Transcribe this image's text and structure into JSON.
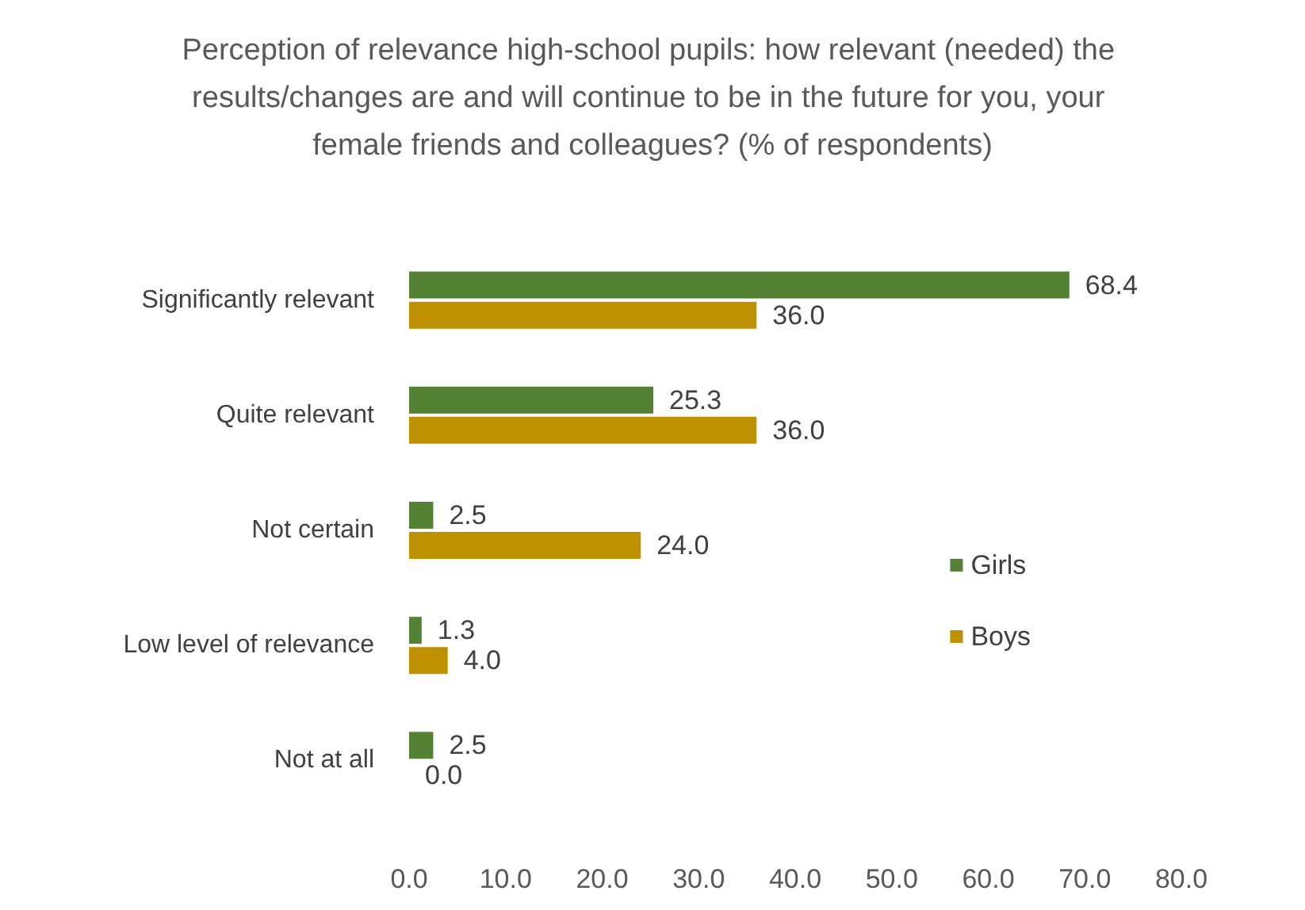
{
  "chart_data": {
    "type": "bar",
    "orientation": "horizontal",
    "title": "Perception of relevance high-school pupils: how relevant (needed) the results/changes are and will continue to be in the future for you, your female friends and colleagues? (% of respondents)",
    "categories": [
      "Significantly relevant",
      "Quite relevant",
      "Not certain",
      "Low level of relevance",
      "Not at all"
    ],
    "series": [
      {
        "name": "Girls",
        "color": "#548235",
        "values": [
          68.4,
          25.3,
          2.5,
          1.3,
          2.5
        ],
        "value_labels": [
          "68.4",
          "25.3",
          "2.5",
          "1.3",
          "2.5"
        ]
      },
      {
        "name": "Boys",
        "color": "#bf9000",
        "values": [
          36.0,
          36.0,
          24.0,
          4.0,
          0.0
        ],
        "value_labels": [
          "36.0",
          "36.0",
          "24.0",
          "4.0",
          "0.0"
        ]
      }
    ],
    "xlim": [
      0,
      80
    ],
    "xticks": [
      {
        "value": 0,
        "label": "0.0"
      },
      {
        "value": 10,
        "label": "10.0"
      },
      {
        "value": 20,
        "label": "20.0"
      },
      {
        "value": 30,
        "label": "30.0"
      },
      {
        "value": 40,
        "label": "40.0"
      },
      {
        "value": 50,
        "label": "50.0"
      },
      {
        "value": 60,
        "label": "60.0"
      },
      {
        "value": 70,
        "label": "70.0"
      },
      {
        "value": 80,
        "label": "80.0"
      }
    ],
    "grid": false,
    "legend": "right"
  }
}
